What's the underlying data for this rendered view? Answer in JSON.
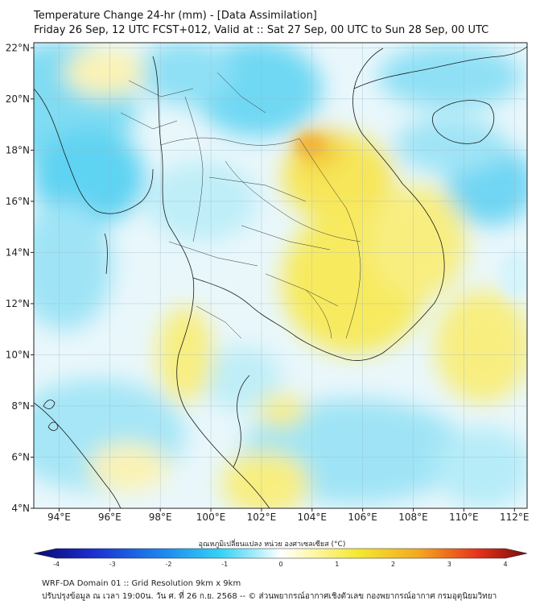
{
  "header": {
    "title": "Temperature Change 24-hr (mm) - [Data Assimilation]",
    "subtitle": "Friday 26 Sep, 12 UTC FCST+012, Valid at :: Sat 27 Sep, 00 UTC to Sun 28 Sep, 00 UTC"
  },
  "map": {
    "lon_range": [
      93,
      112.5
    ],
    "lat_range": [
      4,
      22.2
    ],
    "x_ticks": [
      "94°E",
      "96°E",
      "98°E",
      "100°E",
      "102°E",
      "104°E",
      "106°E",
      "108°E",
      "110°E",
      "112°E"
    ],
    "y_ticks": [
      "22°N",
      "20°N",
      "18°N",
      "16°N",
      "14°N",
      "12°N",
      "10°N",
      "8°N",
      "6°N",
      "4°N"
    ],
    "grid": true
  },
  "colorbar": {
    "title": "อุณหภูมิเปลี่ยนแปลง หน่วย องศาเซลเซียส (°C)",
    "ticks": [
      "-4",
      "-3",
      "-2",
      "-1",
      "0",
      "1",
      "2",
      "3",
      "4"
    ],
    "range": [
      -4,
      4
    ],
    "colors": [
      "#0a0a6e",
      "#1a2fd0",
      "#1e8cf0",
      "#35d3f5",
      "#b9f0fa",
      "#ffffff",
      "#fff7b0",
      "#f3e82e",
      "#f4a820",
      "#e6331a",
      "#7a0a0a"
    ]
  },
  "footer": {
    "line1": "WRF-DA Domain 01 :: Grid Resolution 9km x 9km",
    "line2": "ปรับปรุงข้อมูล ณ เวลา 19:00น. วัน ศ. ที่ 26 ก.ย. 2568 -- © ส่วนพยากรณ์อากาศเชิงตัวเลข กองพยากรณ์อากาศ กรมอุตุนิยมวิทยา"
  }
}
